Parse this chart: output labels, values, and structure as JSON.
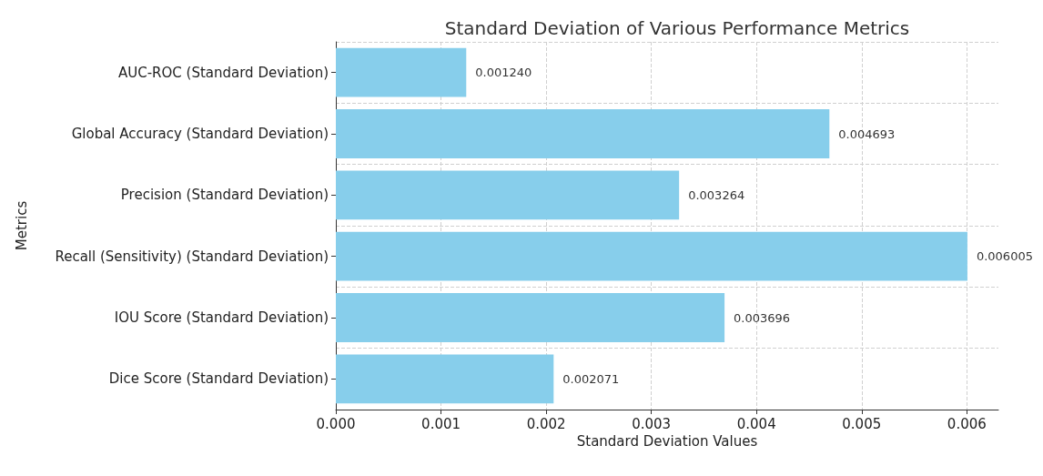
{
  "chart_data": {
    "type": "bar",
    "orientation": "horizontal",
    "title": "Standard Deviation of Various Performance Metrics",
    "xlabel": "Standard Deviation Values",
    "ylabel": "Metrics",
    "categories": [
      "AUC-ROC (Standard Deviation)",
      "Global Accuracy (Standard Deviation)",
      "Precision (Standard Deviation)",
      "Recall (Sensitivity) (Standard Deviation)",
      "IOU Score (Standard Deviation)",
      "Dice Score (Standard Deviation)"
    ],
    "values": [
      0.00124,
      0.004693,
      0.003264,
      0.006005,
      0.003696,
      0.002071
    ],
    "value_labels": [
      "0.001240",
      "0.004693",
      "0.003264",
      "0.006005",
      "0.003696",
      "0.002071"
    ],
    "color": "#87ceeb",
    "xlim": [
      0,
      0.0063
    ],
    "xticks": [
      {
        "value": 0,
        "label": "0.000"
      },
      {
        "value": 0.001,
        "label": "0.001"
      },
      {
        "value": 0.002,
        "label": "0.002"
      },
      {
        "value": 0.003,
        "label": "0.003"
      },
      {
        "value": 0.004,
        "label": "0.004"
      },
      {
        "value": 0.005,
        "label": "0.005"
      },
      {
        "value": 0.006,
        "label": "0.006"
      }
    ],
    "grid": true
  }
}
